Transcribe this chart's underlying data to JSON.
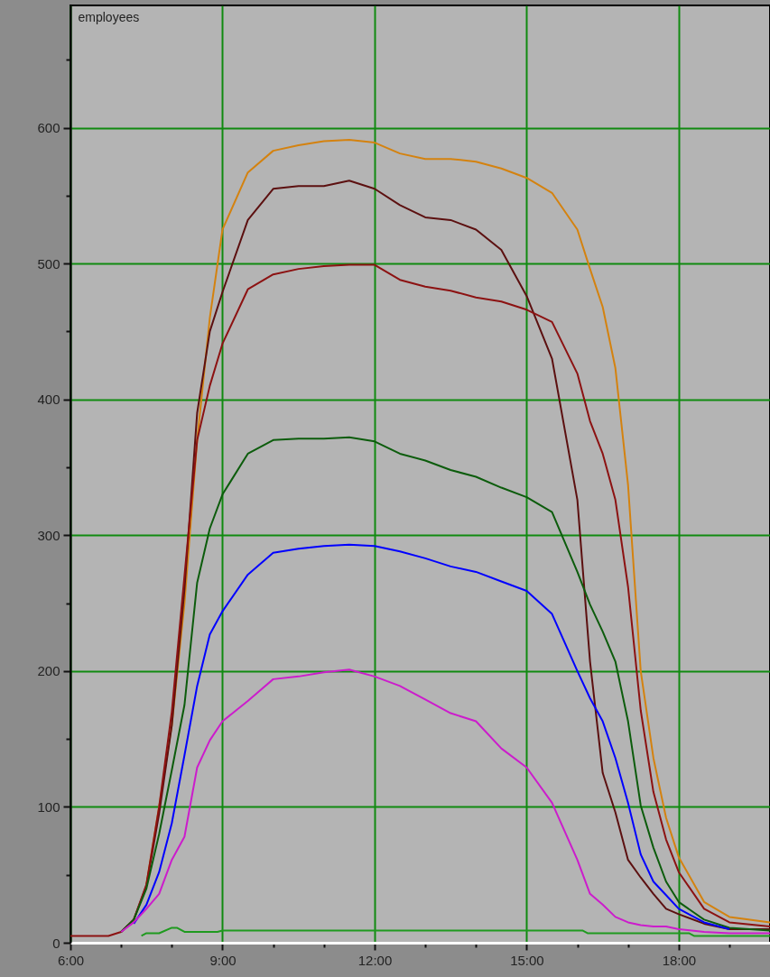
{
  "chart_data": {
    "type": "line",
    "ylabel": "employees",
    "x": [
      6,
      6.5,
      6.75,
      7,
      7.25,
      7.5,
      7.75,
      8,
      8.25,
      8.5,
      8.75,
      9,
      9.5,
      10,
      10.5,
      11,
      11.5,
      12,
      12.5,
      13,
      13.5,
      14,
      14.5,
      15,
      15.5,
      16,
      16.25,
      16.5,
      16.75,
      17,
      17.25,
      17.5,
      17.75,
      18,
      18.5,
      19,
      19.8
    ],
    "series": [
      {
        "color": "#d4820f",
        "values": [
          null,
          null,
          null,
          null,
          null,
          43,
          100,
          160,
          250,
          370,
          460,
          525,
          567,
          583,
          587,
          590,
          591,
          589,
          581,
          577,
          577,
          575,
          570,
          563,
          552,
          525,
          496,
          468,
          423,
          337,
          200,
          136,
          92,
          63,
          30,
          19,
          15
        ]
      },
      {
        "color": "#5c1010",
        "values": [
          null,
          null,
          null,
          8,
          17,
          42,
          95,
          160,
          260,
          390,
          450,
          479,
          532,
          555,
          557,
          557,
          561,
          555,
          543,
          534,
          532,
          525,
          510,
          476,
          430,
          326,
          207,
          125,
          96,
          61,
          48,
          36,
          25,
          21,
          14,
          10,
          10
        ]
      },
      {
        "color": "#8c1212",
        "values": [
          5,
          5,
          5,
          8,
          17,
          43,
          100,
          170,
          270,
          370,
          410,
          441,
          481,
          492,
          496,
          498,
          499,
          499,
          488,
          483,
          480,
          475,
          472,
          466,
          457,
          419,
          384,
          360,
          326,
          262,
          171,
          111,
          76,
          52,
          25,
          15,
          12
        ]
      },
      {
        "color": "#0c5c0c",
        "values": [
          null,
          null,
          null,
          8,
          17,
          40,
          80,
          127,
          175,
          265,
          305,
          330,
          360,
          370,
          371,
          371,
          372,
          369,
          360,
          355,
          348,
          343,
          335,
          328,
          317,
          273,
          249,
          229,
          207,
          163,
          101,
          70,
          45,
          30,
          17,
          11,
          9
        ]
      },
      {
        "color": "#0000ff",
        "values": [
          null,
          null,
          null,
          null,
          14,
          28,
          52,
          88,
          138,
          189,
          227,
          244,
          271,
          287,
          290,
          292,
          293,
          292,
          288,
          283,
          277,
          273,
          266,
          259,
          242,
          200,
          180,
          163,
          136,
          103,
          65,
          45,
          35,
          25,
          15,
          10,
          null
        ]
      },
      {
        "color": "#cc1ccc",
        "values": [
          null,
          null,
          null,
          8,
          15,
          25,
          36,
          61,
          78,
          129,
          149,
          163,
          178,
          194,
          196,
          199,
          201,
          196,
          189,
          179,
          169,
          163,
          143,
          129,
          103,
          61,
          36,
          28,
          19,
          15,
          13,
          12,
          12,
          10,
          8,
          7,
          7
        ]
      },
      {
        "color": "#1f9a1f",
        "x": [
          7.4,
          7.5,
          7.75,
          8,
          8.1,
          8.25,
          8.9,
          9,
          16.1,
          16.2,
          18.2,
          18.3,
          19.8
        ],
        "values": [
          5,
          7,
          7,
          11,
          11,
          8,
          8,
          9,
          9,
          7,
          7,
          5,
          5
        ]
      }
    ],
    "xlim": [
      6,
      19.8
    ],
    "xticks": [
      {
        "value": 6,
        "label": "6:00"
      },
      {
        "value": 7,
        "label": null
      },
      {
        "value": 8,
        "label": null
      },
      {
        "value": 9,
        "label": "9:00"
      },
      {
        "value": 10,
        "label": null
      },
      {
        "value": 11,
        "label": null
      },
      {
        "value": 12,
        "label": "12:00"
      },
      {
        "value": 13,
        "label": null
      },
      {
        "value": 14,
        "label": null
      },
      {
        "value": 15,
        "label": "15:00"
      },
      {
        "value": 16,
        "label": null
      },
      {
        "value": 17,
        "label": null
      },
      {
        "value": 18,
        "label": "18:00"
      },
      {
        "value": 19,
        "label": null
      }
    ],
    "ylim": [
      0,
      690
    ],
    "yticks": [
      0,
      {
        "value": 50,
        "label": null
      },
      100,
      {
        "value": 150,
        "label": null
      },
      200,
      {
        "value": 250,
        "label": null
      },
      300,
      {
        "value": 350,
        "label": null
      },
      400,
      {
        "value": 450,
        "label": null
      },
      500,
      {
        "value": 550,
        "label": null
      },
      600,
      {
        "value": 650,
        "label": null
      }
    ],
    "grid": true
  }
}
